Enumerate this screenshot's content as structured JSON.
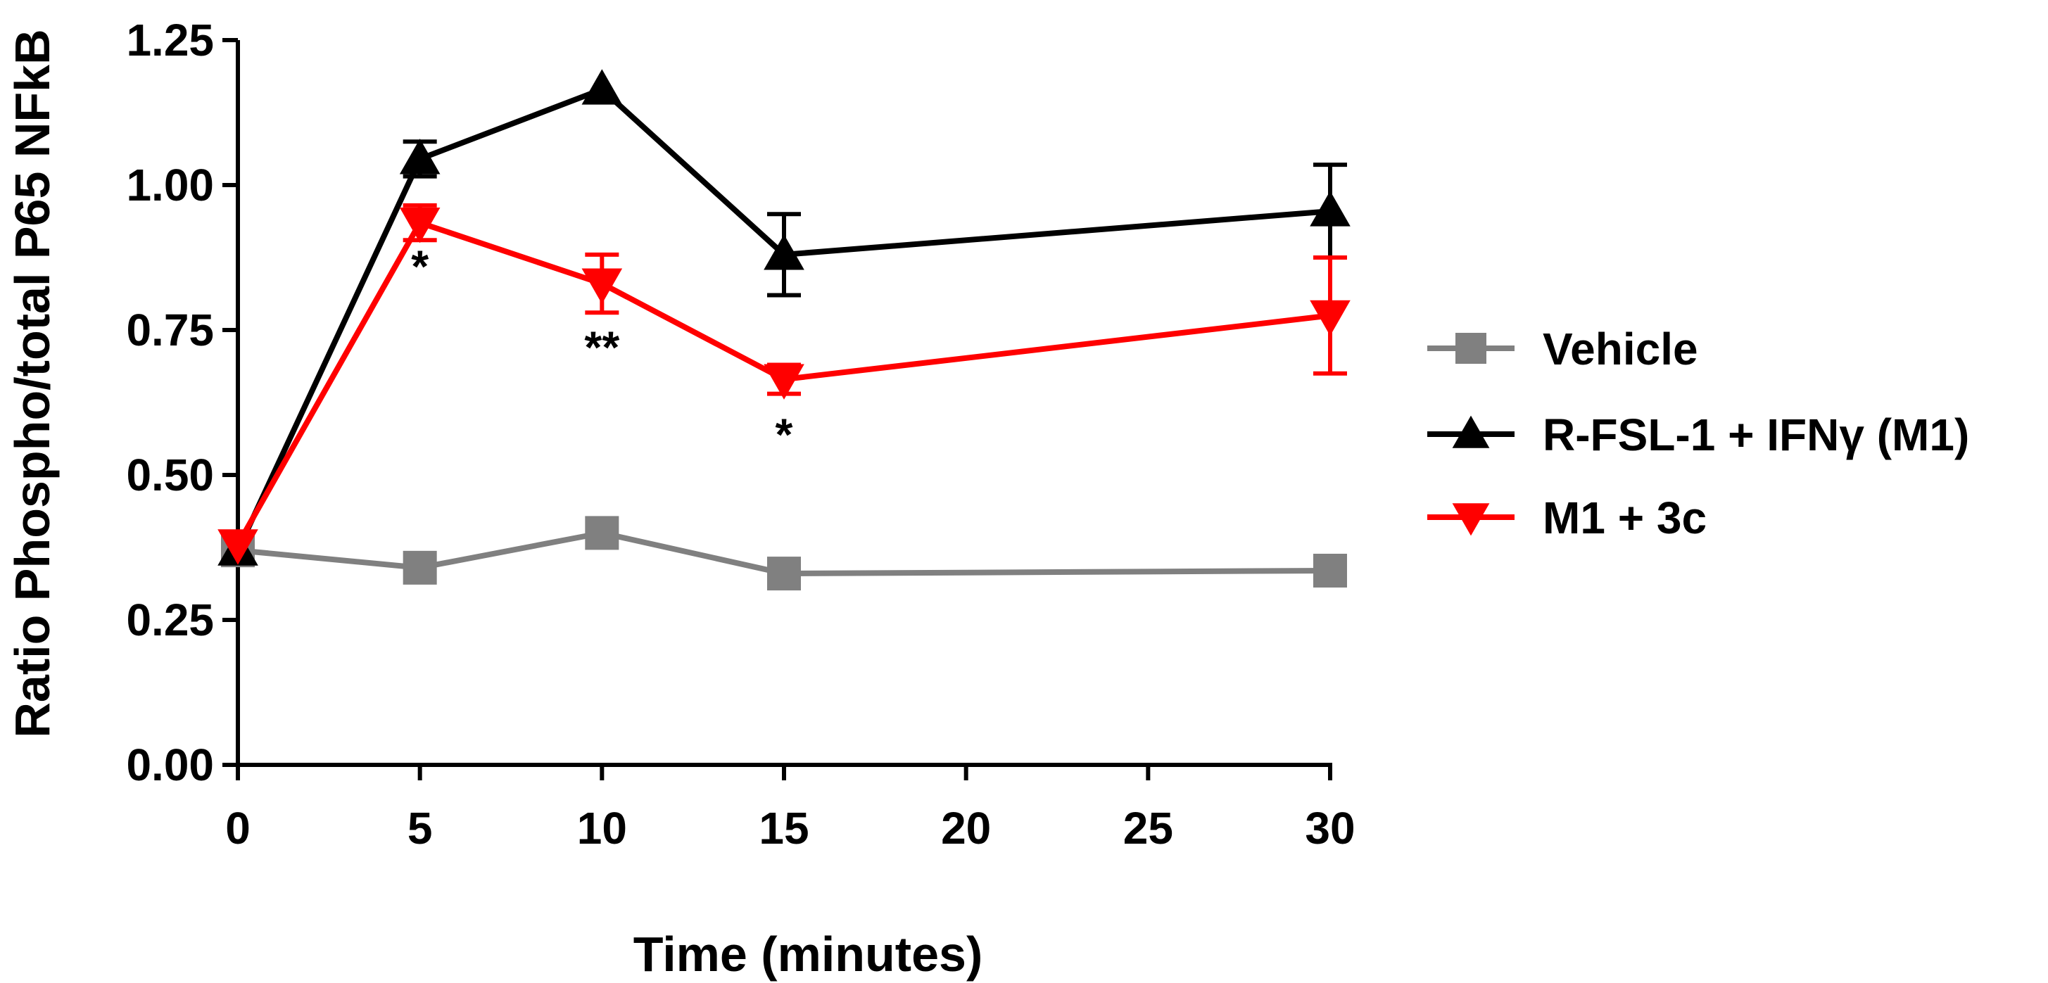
{
  "chart_data": {
    "type": "line",
    "title": "",
    "xlabel": "Time (minutes)",
    "ylabel": "Ratio Phospho/total P65 NFkB",
    "x": [
      0,
      5,
      10,
      15,
      30
    ],
    "xticks": [
      0,
      5,
      10,
      15,
      20,
      25,
      30
    ],
    "xtick_labels": [
      "0",
      "5",
      "10",
      "15",
      "20",
      "25",
      "30"
    ],
    "xlim": [
      0,
      30
    ],
    "yticks": [
      0,
      0.25,
      0.5,
      0.75,
      1.0,
      1.25
    ],
    "ytick_labels": [
      "0.00",
      "0.25",
      "0.50",
      "0.75",
      "1.00",
      "1.25"
    ],
    "ylim": [
      0,
      1.25
    ],
    "grid": false,
    "legend_position": "right",
    "series": [
      {
        "name": "Vehicle",
        "color": "#808080",
        "marker": "square",
        "values": [
          0.37,
          0.34,
          0.4,
          0.33,
          0.335
        ],
        "errors": [
          0,
          0,
          0,
          0,
          0
        ]
      },
      {
        "name": "R-FSL-1 + IFNγ (M1)",
        "color": "#000000",
        "marker": "triangle-up",
        "values": [
          0.37,
          1.045,
          1.165,
          0.88,
          0.955
        ],
        "errors": [
          0,
          0.03,
          0,
          0.07,
          0.08
        ]
      },
      {
        "name": "M1 + 3c",
        "color": "#ff0000",
        "marker": "triangle-down",
        "values": [
          0.38,
          0.935,
          0.83,
          0.665,
          0.775
        ],
        "errors": [
          0,
          0.03,
          0.05,
          0.025,
          0.1
        ]
      }
    ],
    "annotations": [
      {
        "x": 5,
        "y": 0.86,
        "text": "*"
      },
      {
        "x": 10,
        "y": 0.72,
        "text": "**"
      },
      {
        "x": 15,
        "y": 0.57,
        "text": "*"
      }
    ]
  }
}
